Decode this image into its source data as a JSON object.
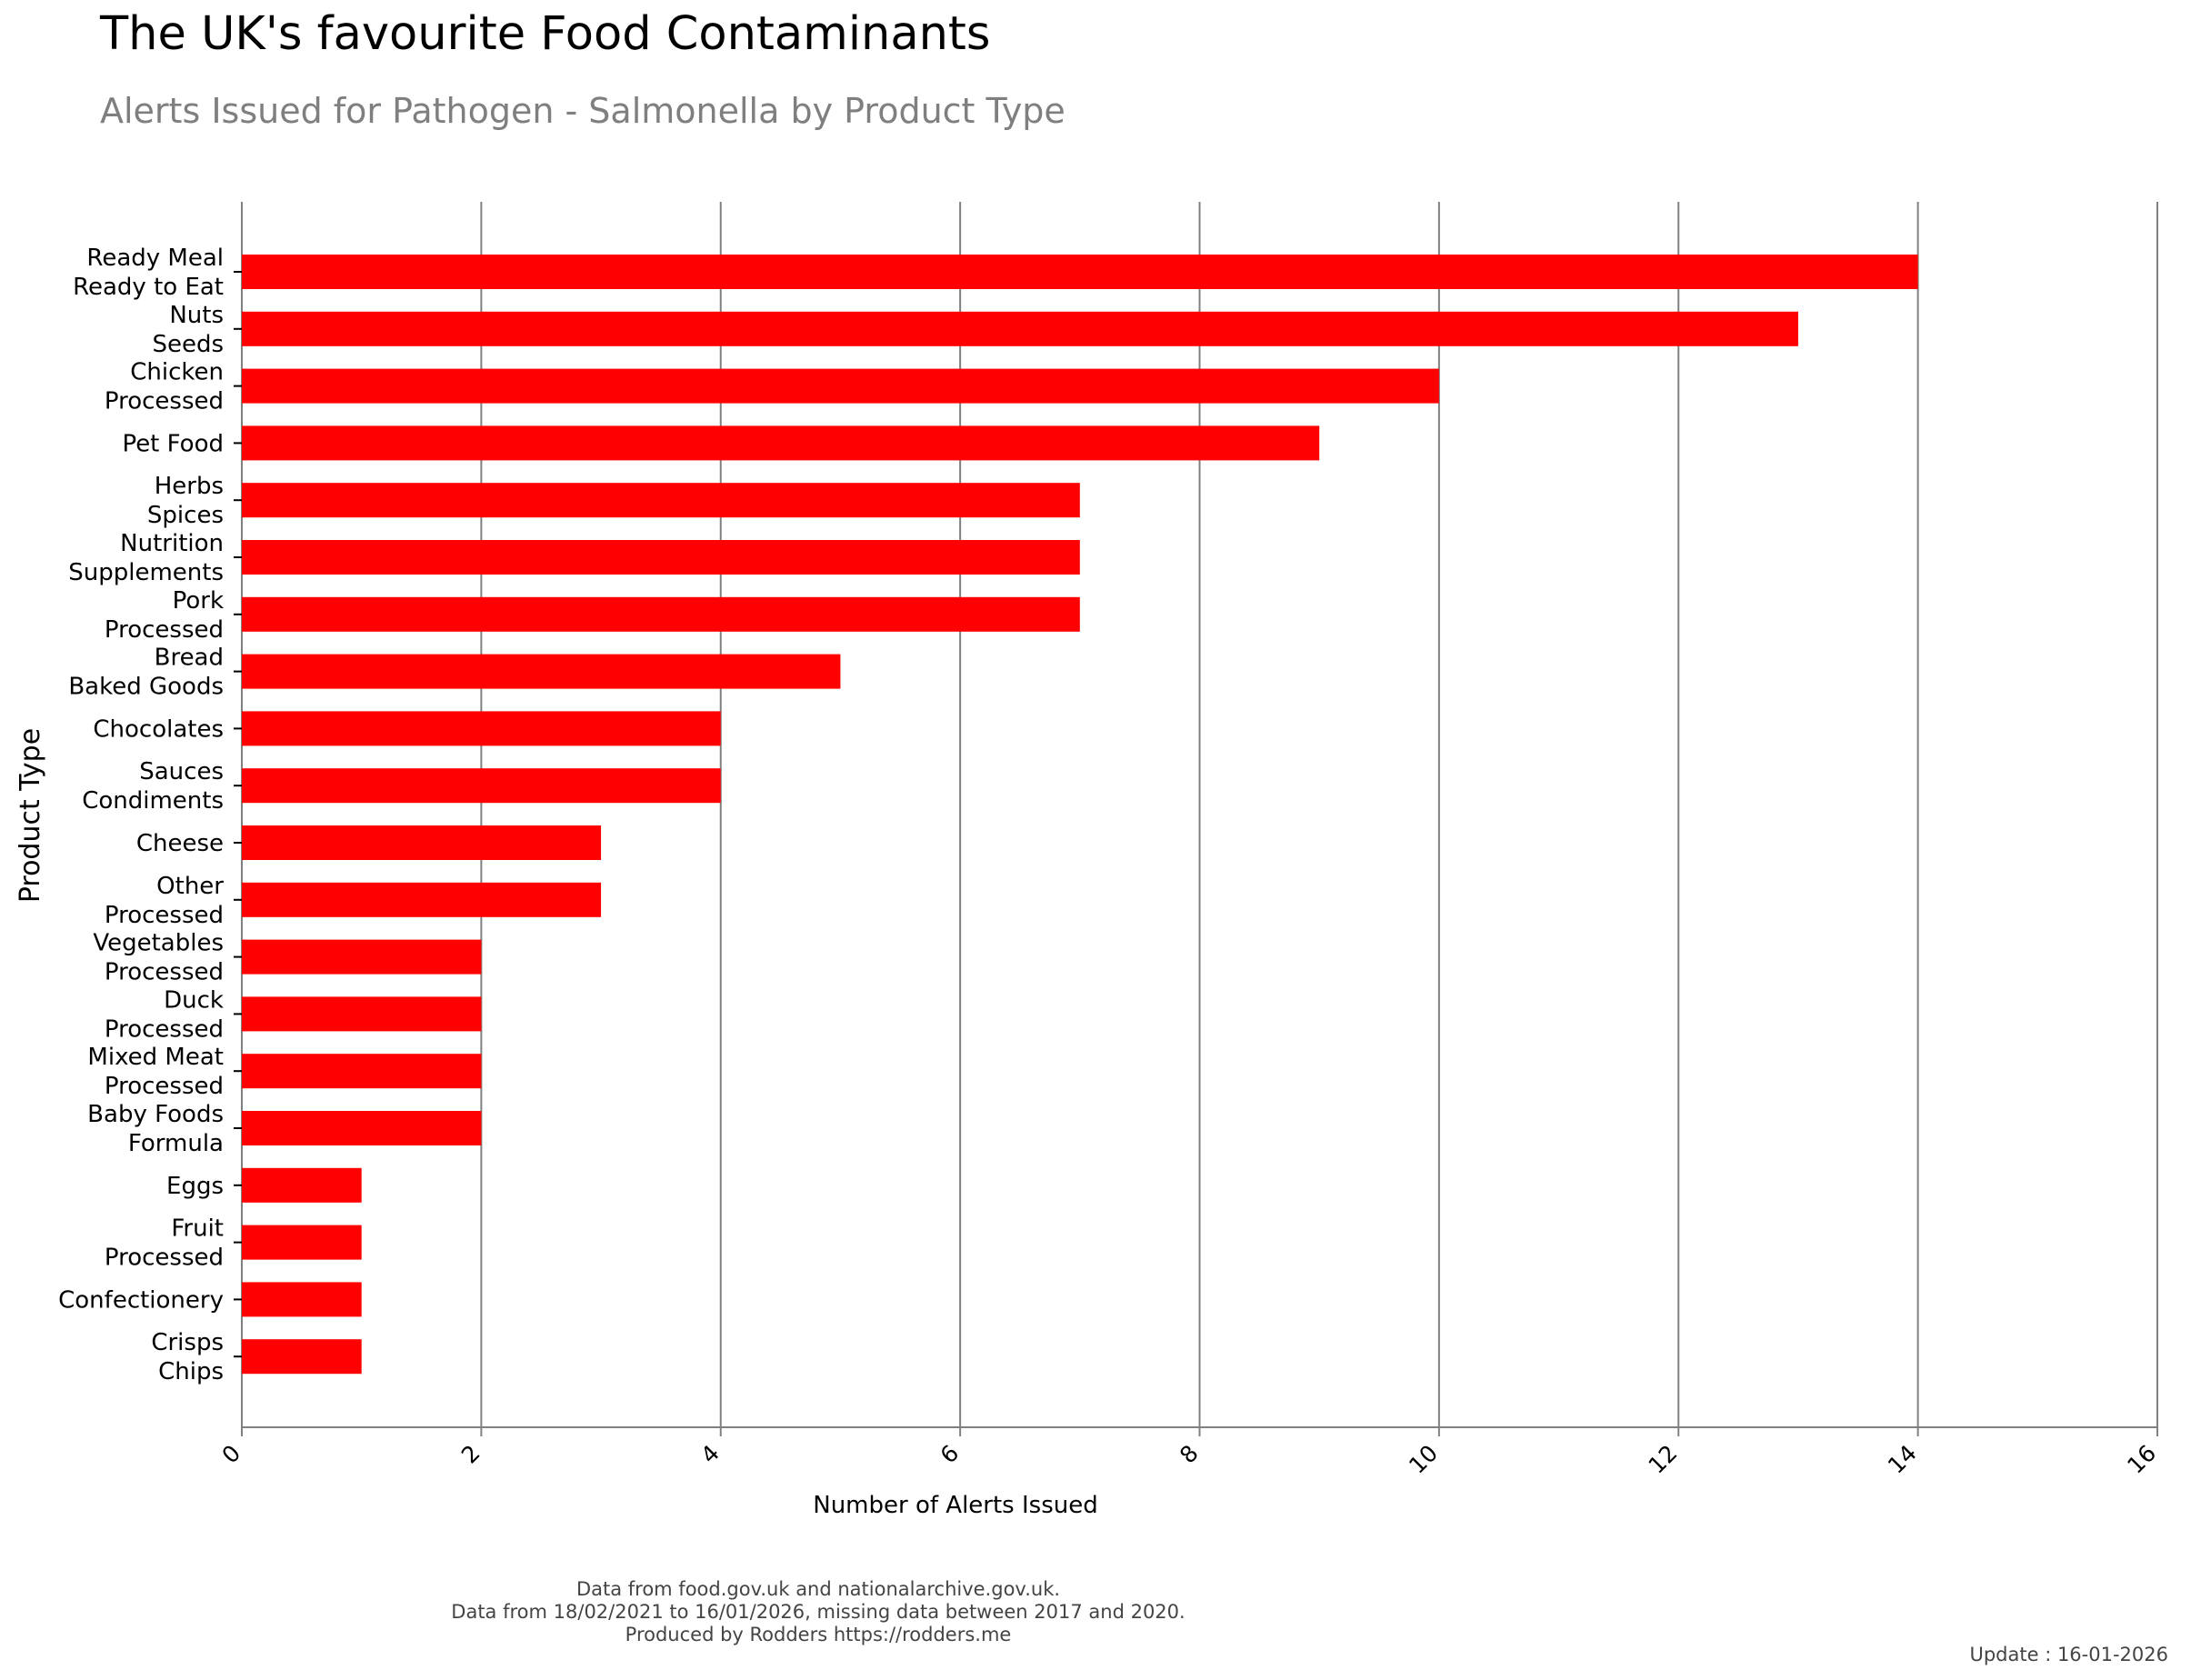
{
  "title": "The UK's favourite Food Contaminants",
  "subtitle": "Alerts Issued for Pathogen - Salmonella by Product Type",
  "footer": {
    "line1": "Data from food.gov.uk and nationalarchive.gov.uk.",
    "line2": "Data from 18/02/2021 to 16/01/2026, missing data between 2017 and 2020.",
    "line3": "Produced by Rodders https://rodders.me"
  },
  "update": "Update : 16-01-2026",
  "colors": {
    "bar": "#ff0000",
    "grid": "#808080",
    "axis": "#808080"
  },
  "chart_data": {
    "type": "bar",
    "orientation": "horizontal",
    "xlabel": "Number of Alerts Issued",
    "ylabel": "Product Type",
    "xlim": [
      0,
      16
    ],
    "xticks": [
      0,
      2,
      4,
      6,
      8,
      10,
      12,
      14,
      16
    ],
    "grid": "vertical",
    "categories": [
      [
        "Ready Meal",
        "Ready to Eat"
      ],
      [
        "Nuts",
        "Seeds"
      ],
      [
        "Chicken",
        "Processed"
      ],
      [
        "Pet Food"
      ],
      [
        "Herbs",
        "Spices"
      ],
      [
        "Nutrition",
        "Supplements"
      ],
      [
        "Pork",
        "Processed"
      ],
      [
        "Bread",
        "Baked Goods"
      ],
      [
        "Chocolates"
      ],
      [
        "Sauces",
        "Condiments"
      ],
      [
        "Cheese"
      ],
      [
        "Other",
        "Processed"
      ],
      [
        "Vegetables",
        "Processed"
      ],
      [
        "Duck",
        "Processed"
      ],
      [
        "Mixed Meat",
        "Processed"
      ],
      [
        "Baby Foods",
        "Formula"
      ],
      [
        "Eggs"
      ],
      [
        "Fruit",
        "Processed"
      ],
      [
        "Confectionery"
      ],
      [
        "Crisps",
        "Chips"
      ]
    ],
    "values": [
      14,
      13,
      10,
      9,
      7,
      7,
      7,
      5,
      4,
      4,
      3,
      3,
      2,
      2,
      2,
      2,
      1,
      1,
      1,
      1
    ]
  }
}
